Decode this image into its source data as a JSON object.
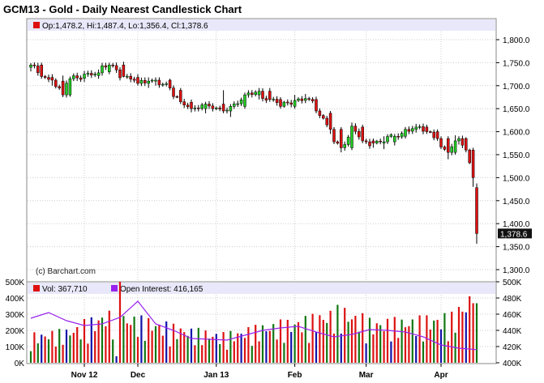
{
  "title": "GCM13 - Gold - Daily Nearest Candlestick Chart",
  "watermark": "(c) Barchart.com",
  "colors": {
    "up": "#22cc22",
    "down": "#dd1111",
    "vol_up": "#117711",
    "vol_down": "#dd1111",
    "vol_flat": "#1111aa",
    "open_interest": "#9922ee",
    "legend_bar": "#e8e8fa",
    "grid": "#cccccc",
    "last_tag_bg": "#111111",
    "last_tag_fg": "#ffffff"
  },
  "price_panel": {
    "legend": "Op:1,478.2, Hi:1,487.4, Lo:1,356.4, Cl:1,378.6",
    "y_ticks": [
      "1,800.0",
      "1,750.0",
      "1,700.0",
      "1,650.0",
      "1,600.0",
      "1,550.0",
      "1,500.0",
      "1,450.0",
      "1,400.0",
      "1,350.0",
      "1,300.0"
    ],
    "last_value": "1,378.6"
  },
  "volume_panel": {
    "legend_vol": "Vol: 367,710",
    "legend_oi": "Open Interest: 416,165",
    "y_ticks_left": [
      "500K",
      "400K",
      "300K",
      "200K",
      "100K",
      "0K"
    ],
    "y_ticks_right": [
      "500K",
      "480K",
      "460K",
      "440K",
      "420K",
      "400K"
    ]
  },
  "x_labels": [
    "Nov 12",
    "Dec",
    "Jan 13",
    "Feb",
    "Mar",
    "Apr"
  ],
  "chart_data": [
    {
      "type": "candlestick",
      "title": "GCM13 - Gold - Daily Nearest Candlestick Chart",
      "ylim": [
        1275,
        1825
      ],
      "anchors": [
        [
          "2012-10-22",
          1740,
          1749,
          1731,
          1745
        ],
        [
          "2012-10-25",
          1745,
          1750,
          1715,
          1720
        ],
        [
          "2012-10-30",
          1718,
          1725,
          1700,
          1712
        ],
        [
          "2012-11-02",
          1710,
          1722,
          1675,
          1680
        ],
        [
          "2012-11-06",
          1680,
          1720,
          1676,
          1715
        ],
        [
          "2012-11-12",
          1716,
          1732,
          1708,
          1725
        ],
        [
          "2012-11-16",
          1722,
          1735,
          1715,
          1728
        ],
        [
          "2012-11-21",
          1730,
          1750,
          1725,
          1745
        ],
        [
          "2012-11-27",
          1745,
          1752,
          1718,
          1720
        ],
        [
          "2012-12-03",
          1718,
          1725,
          1700,
          1705
        ],
        [
          "2012-12-06",
          1705,
          1718,
          1695,
          1710
        ],
        [
          "2012-12-10",
          1710,
          1718,
          1700,
          1712
        ],
        [
          "2012-12-14",
          1712,
          1715,
          1690,
          1695
        ],
        [
          "2012-12-19",
          1690,
          1695,
          1660,
          1665
        ],
        [
          "2012-12-24",
          1664,
          1670,
          1642,
          1650
        ],
        [
          "2012-12-28",
          1650,
          1665,
          1640,
          1660
        ],
        [
          "2013-01-04",
          1660,
          1690,
          1640,
          1645
        ],
        [
          "2013-01-08",
          1645,
          1660,
          1632,
          1655
        ],
        [
          "2013-01-14",
          1655,
          1685,
          1650,
          1680
        ],
        [
          "2013-01-18",
          1680,
          1695,
          1670,
          1688
        ],
        [
          "2013-01-23",
          1688,
          1695,
          1665,
          1670
        ],
        [
          "2013-01-28",
          1670,
          1675,
          1650,
          1655
        ],
        [
          "2013-02-01",
          1655,
          1680,
          1650,
          1668
        ],
        [
          "2013-02-06",
          1668,
          1682,
          1662,
          1672
        ],
        [
          "2013-02-11",
          1670,
          1676,
          1640,
          1645
        ],
        [
          "2013-02-15",
          1640,
          1645,
          1595,
          1605
        ],
        [
          "2013-02-20",
          1605,
          1610,
          1555,
          1565
        ],
        [
          "2013-02-25",
          1565,
          1620,
          1560,
          1612
        ],
        [
          "2013-02-28",
          1610,
          1615,
          1575,
          1580
        ],
        [
          "2013-03-05",
          1580,
          1585,
          1565,
          1575
        ],
        [
          "2013-03-08",
          1575,
          1590,
          1562,
          1578
        ],
        [
          "2013-03-13",
          1578,
          1595,
          1570,
          1590
        ],
        [
          "2013-03-18",
          1590,
          1610,
          1585,
          1605
        ],
        [
          "2013-03-21",
          1605,
          1617,
          1598,
          1610
        ],
        [
          "2013-03-26",
          1610,
          1615,
          1595,
          1600
        ],
        [
          "2013-03-29",
          1600,
          1605,
          1580,
          1585
        ],
        [
          "2013-04-03",
          1585,
          1590,
          1540,
          1555
        ],
        [
          "2013-04-05",
          1555,
          1592,
          1550,
          1580
        ],
        [
          "2013-04-08",
          1580,
          1590,
          1572,
          1585
        ],
        [
          "2013-04-10",
          1585,
          1588,
          1555,
          1560
        ],
        [
          "2013-04-12",
          1560,
          1565,
          1480,
          1500
        ],
        [
          "2013-04-15",
          1478.2,
          1487.4,
          1356.4,
          1378.6
        ]
      ]
    },
    {
      "type": "bar",
      "title": "Volume",
      "ylim": [
        0,
        500000
      ],
      "profile": [
        [
          "2012-10-22",
          130000
        ],
        [
          "2012-11-05",
          150000
        ],
        [
          "2012-11-20",
          230000
        ],
        [
          "2012-12-05",
          200000
        ],
        [
          "2012-12-20",
          160000
        ],
        [
          "2013-01-05",
          130000
        ],
        [
          "2013-01-20",
          170000
        ],
        [
          "2013-02-05",
          200000
        ],
        [
          "2013-02-20",
          250000
        ],
        [
          "2013-03-05",
          190000
        ],
        [
          "2013-03-20",
          200000
        ],
        [
          "2013-04-05",
          220000
        ],
        [
          "2013-04-16",
          367710
        ]
      ]
    },
    {
      "type": "line",
      "title": "Open Interest",
      "ylim": [
        400000,
        500000
      ],
      "series": [
        {
          "name": "Open Interest",
          "points": [
            [
              "2012-10-22",
              455000
            ],
            [
              "2012-10-29",
              462000
            ],
            [
              "2012-11-05",
              452000
            ],
            [
              "2012-11-12",
              446000
            ],
            [
              "2012-11-19",
              448000
            ],
            [
              "2012-11-26",
              456000
            ],
            [
              "2012-12-03",
              476000
            ],
            [
              "2012-12-10",
              448000
            ],
            [
              "2012-12-17",
              440000
            ],
            [
              "2012-12-24",
              430000
            ],
            [
              "2013-01-07",
              428000
            ],
            [
              "2013-01-14",
              434000
            ],
            [
              "2013-01-21",
              440000
            ],
            [
              "2013-01-28",
              443000
            ],
            [
              "2013-02-04",
              445000
            ],
            [
              "2013-02-11",
              438000
            ],
            [
              "2013-02-18",
              432000
            ],
            [
              "2013-02-25",
              435000
            ],
            [
              "2013-03-04",
              441000
            ],
            [
              "2013-03-11",
              440000
            ],
            [
              "2013-03-18",
              438000
            ],
            [
              "2013-03-25",
              432000
            ],
            [
              "2013-04-01",
              422000
            ],
            [
              "2013-04-08",
              418000
            ],
            [
              "2013-04-16",
              416165
            ]
          ]
        }
      ]
    }
  ]
}
